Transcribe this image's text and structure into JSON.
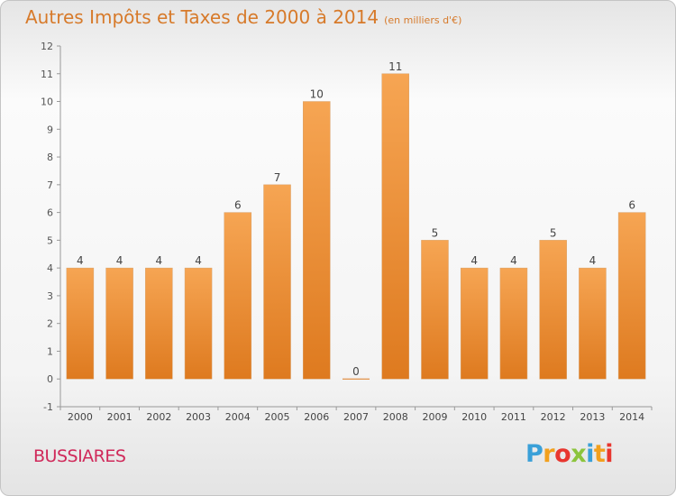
{
  "header": {
    "title": "Autres Impôts et Taxes de 2000 à 2014",
    "unit": "(en milliers d'€)"
  },
  "footer": {
    "commune": "BUSSIARES",
    "logo_text": "Proxiti"
  },
  "colors": {
    "title": "#d77a2a",
    "bar_top": "#f6a553",
    "bar_bottom": "#de7a1f",
    "commune": "#d0295a"
  },
  "chart_data": {
    "type": "bar",
    "title": "Autres Impôts et Taxes de 2000 à 2014",
    "subtitle": "(en milliers d'€)",
    "categories": [
      "2000",
      "2001",
      "2002",
      "2003",
      "2004",
      "2005",
      "2006",
      "2007",
      "2008",
      "2009",
      "2010",
      "2011",
      "2012",
      "2013",
      "2014"
    ],
    "values": [
      4,
      4,
      4,
      4,
      6,
      7,
      10,
      0,
      11,
      5,
      4,
      4,
      5,
      4,
      6
    ],
    "ylim": [
      -1,
      12
    ],
    "yticks": [
      -1,
      0,
      1,
      2,
      3,
      4,
      5,
      6,
      7,
      8,
      9,
      10,
      11,
      12
    ],
    "grid": false,
    "data_labels": true
  }
}
